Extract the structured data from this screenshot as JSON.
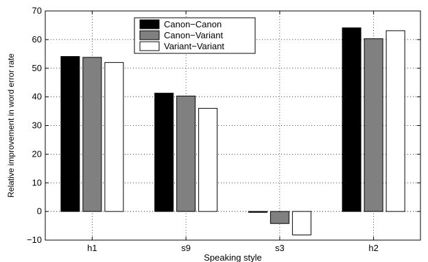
{
  "chart_data": {
    "type": "bar",
    "categories": [
      "h1",
      "s9",
      "s3",
      "h2"
    ],
    "series": [
      {
        "name": "Canon−Canon",
        "color": "#000000",
        "values": [
          54.1,
          41.3,
          -0.3,
          64.1
        ]
      },
      {
        "name": "Canon−Variant",
        "color": "#808080",
        "values": [
          53.8,
          40.3,
          -4.2,
          60.3
        ]
      },
      {
        "name": "Variant−Variant",
        "color": "#ffffff",
        "values": [
          52.0,
          36.0,
          -8.2,
          63.1
        ]
      }
    ],
    "title": "",
    "xlabel": "Speaking style",
    "ylabel": "Relative improvement in word error rate",
    "ylim": [
      -10,
      70
    ],
    "yticks": [
      -10,
      0,
      10,
      20,
      30,
      40,
      50,
      60,
      70
    ],
    "grid": true,
    "legend_position": "top-center"
  }
}
